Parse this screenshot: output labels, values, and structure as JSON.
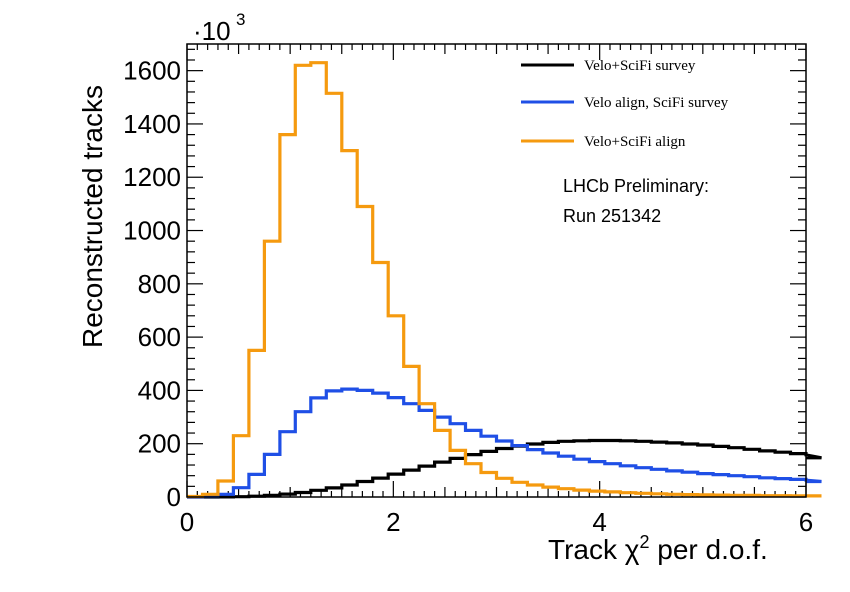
{
  "chart_data": {
    "type": "line",
    "subtype": "step-histogram",
    "xlabel_main": "Track ",
    "xlabel_symbol": "χ",
    "xlabel_sup": "2",
    "xlabel_tail": " per d.o.f.",
    "ylabel": "Reconstructed tracks",
    "y_multiplier_prefix": "·10",
    "y_multiplier_exp": "3",
    "xlim": [
      0,
      6
    ],
    "ylim": [
      0,
      1700
    ],
    "x_ticks": [
      0,
      2,
      4,
      6
    ],
    "y_ticks": [
      0,
      200,
      400,
      600,
      800,
      1000,
      1200,
      1400,
      1600
    ],
    "x_tick_labels": [
      "0",
      "2",
      "4",
      "6"
    ],
    "y_tick_labels": [
      "0",
      "200",
      "400",
      "600",
      "800",
      "1000",
      "1200",
      "1400",
      "1600"
    ],
    "grid": false,
    "legend_position": "top-right",
    "annotation_line1": "LHCb Preliminary:",
    "annotation_line2": "Run 251342",
    "bin_width": 0.15,
    "series": [
      {
        "name": "Velo+SciFi survey",
        "color": "#000000",
        "values": [
          0,
          0,
          0.5,
          1,
          3,
          6,
          11,
          17,
          25,
          34,
          45,
          58,
          71,
          86,
          101,
          116,
          131,
          145,
          159,
          171,
          182,
          191,
          199,
          205,
          209,
          211,
          212,
          212,
          211,
          209,
          206,
          203,
          199,
          195,
          190,
          185,
          179,
          173,
          168,
          163,
          158,
          147
        ]
      },
      {
        "name": "Velo align, SciFi survey",
        "color": "#1f4fe6",
        "values": [
          0,
          2,
          10,
          35,
          85,
          160,
          245,
          320,
          372,
          398,
          405,
          400,
          390,
          373,
          350,
          325,
          300,
          275,
          250,
          228,
          210,
          193,
          178,
          165,
          153,
          142,
          133,
          125,
          117,
          110,
          104,
          98,
          93,
          88,
          84,
          80,
          76,
          72,
          69,
          66,
          63,
          58
        ]
      },
      {
        "name": "Velo+SciFi align",
        "color": "#f59a0f",
        "values": [
          2,
          10,
          60,
          230,
          550,
          960,
          1360,
          1620,
          1630,
          1515,
          1300,
          1090,
          880,
          680,
          490,
          350,
          250,
          175,
          125,
          92,
          70,
          55,
          45,
          37,
          31,
          26,
          22,
          19,
          16,
          14,
          12,
          10,
          9,
          8,
          7,
          6,
          6,
          5,
          5,
          4,
          4,
          4
        ]
      }
    ]
  }
}
